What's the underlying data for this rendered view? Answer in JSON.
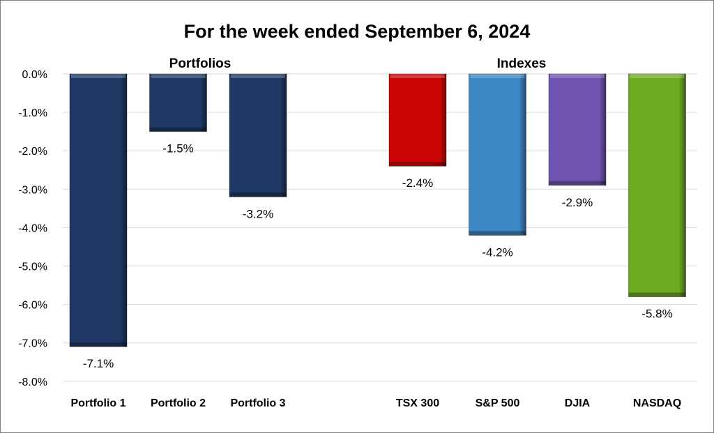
{
  "chart_data": {
    "type": "bar",
    "title": "For the week ended September 6, 2024",
    "groups": [
      {
        "label": "Portfolios",
        "categories": [
          "Portfolio 1",
          "Portfolio 2",
          "Portfolio 3"
        ]
      },
      {
        "label": "Indexes",
        "categories": [
          "TSX 300",
          "S&P 500",
          "DJIA",
          "NASDAQ"
        ]
      }
    ],
    "categories": [
      "Portfolio 1",
      "Portfolio 2",
      "Portfolio 3",
      "TSX 300",
      "S&P 500",
      "DJIA",
      "NASDAQ"
    ],
    "values": [
      -7.1,
      -1.5,
      -3.2,
      -2.4,
      -4.2,
      -2.9,
      -5.8
    ],
    "data_labels": [
      "-7.1%",
      "-1.5%",
      "-3.2%",
      "-2.4%",
      "-4.2%",
      "-2.9%",
      "-5.8%"
    ],
    "colors": [
      "#1F3864",
      "#1F3864",
      "#1F3864",
      "#CC0606",
      "#3C86C4",
      "#6E54AE",
      "#6CAA22"
    ],
    "ylim": [
      -8,
      0
    ],
    "yticks": [
      "0.0%",
      "-1.0%",
      "-2.0%",
      "-3.0%",
      "-4.0%",
      "-5.0%",
      "-6.0%",
      "-7.0%",
      "-8.0%"
    ],
    "xlabel": "",
    "ylabel": "",
    "grid": true,
    "legend": "none"
  }
}
